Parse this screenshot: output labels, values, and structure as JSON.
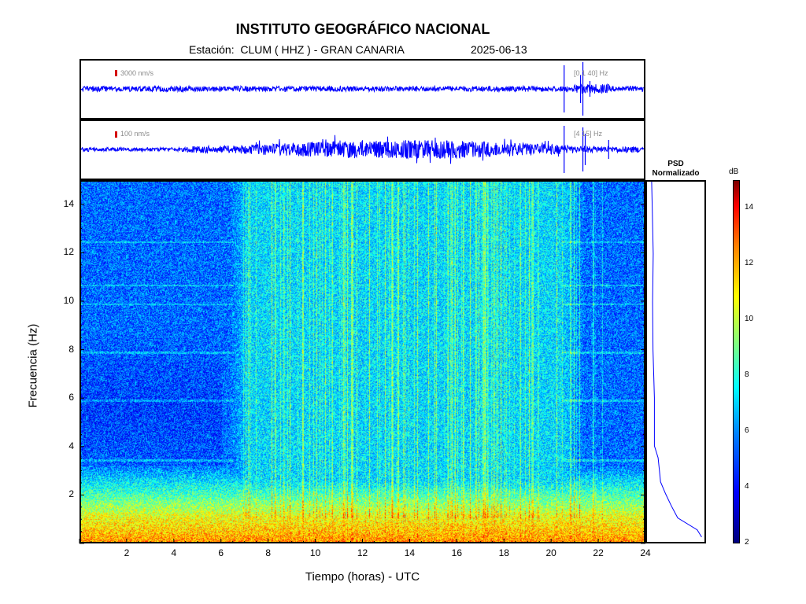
{
  "header": {
    "title": "INSTITUTO GEOGRÁFICO NACIONAL",
    "station": "Estación:  CLUM ( HHZ ) - GRAN CANARIA",
    "date": "2025-06-13"
  },
  "waveforms": [
    {
      "scale_label": "3000 nm/s",
      "band_label": "[0.1 40] Hz",
      "color": "#0000ff"
    },
    {
      "scale_label": "100 nm/s",
      "band_label": "[4 15] Hz",
      "color": "#0000ff"
    }
  ],
  "psd": {
    "title_line1": "PSD",
    "title_line2": "Normalizado"
  },
  "colorbar": {
    "label": "dB",
    "range": [
      2,
      15
    ],
    "ticks": [
      "2",
      "4",
      "6",
      "8",
      "10",
      "12",
      "14"
    ]
  },
  "chart_data": {
    "type": "heatmap",
    "title": "INSTITUTO GEOGRÁFICO NACIONAL",
    "subtitle": "Estación:  CLUM ( HHZ ) - GRAN CANARIA    2025-06-13",
    "xlabel": "Tiempo (horas) - UTC",
    "ylabel": "Frecuencia  (Hz)",
    "xlim": [
      0,
      24
    ],
    "ylim": [
      0,
      15
    ],
    "xticks": [
      "2",
      "4",
      "6",
      "8",
      "10",
      "12",
      "14",
      "16",
      "18",
      "20",
      "22",
      "24"
    ],
    "yticks": [
      "2",
      "4",
      "6",
      "8",
      "10",
      "12",
      "14"
    ],
    "colorbar_label": "dB",
    "colorbar_range": [
      2,
      15
    ],
    "colormap": "jet",
    "description_values": {
      "low_freq_band_hz": [
        0,
        1.2
      ],
      "low_freq_level_db": 11.5,
      "quiet_period_hours": [
        0,
        6.5
      ],
      "quiet_level_db": 5,
      "active_period_hours": [
        7,
        21
      ],
      "active_level_db": 6.5
    },
    "psd_normalized": {
      "freq_hz": [
        0.2,
        0.5,
        1,
        1.5,
        2,
        2.5,
        3,
        3.5,
        4,
        6,
        8,
        10,
        12,
        14,
        15
      ],
      "value": [
        1.0,
        0.9,
        0.55,
        0.4,
        0.3,
        0.22,
        0.18,
        0.14,
        0.1,
        0.08,
        0.07,
        0.06,
        0.05,
        0.05,
        0.05
      ]
    }
  }
}
